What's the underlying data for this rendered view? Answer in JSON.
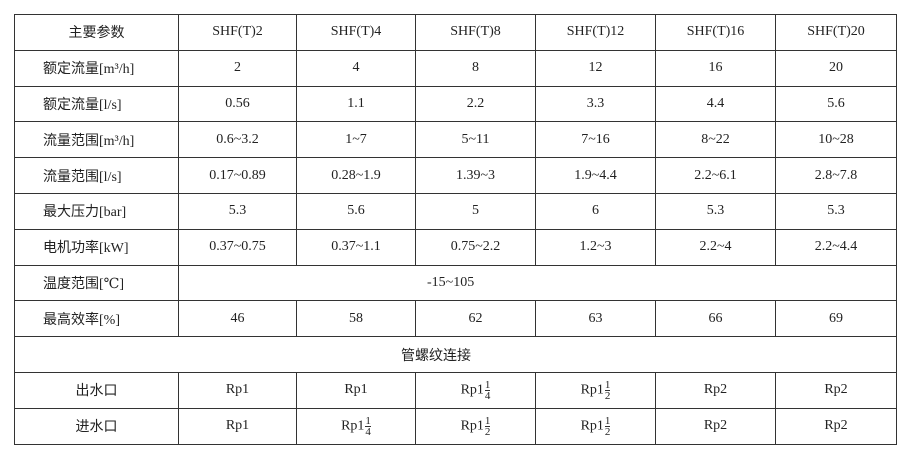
{
  "header": [
    "主要参数",
    "SHF(T)2",
    "SHF(T)4",
    "SHF(T)8",
    "SHF(T)12",
    "SHF(T)16",
    "SHF(T)20"
  ],
  "rows": [
    {
      "label": "额定流量[m³/h]",
      "values": [
        "2",
        "4",
        "8",
        "12",
        "16",
        "20"
      ]
    },
    {
      "label": "额定流量[l/s]",
      "values": [
        "0.56",
        "1.1",
        "2.2",
        "3.3",
        "4.4",
        "5.6"
      ]
    },
    {
      "label": "流量范围[m³/h]",
      "values": [
        "0.6~3.2",
        "1~7",
        "5~11",
        "7~16",
        "8~22",
        "10~28"
      ]
    },
    {
      "label": "流量范围[l/s]",
      "values": [
        "0.17~0.89",
        "0.28~1.9",
        "1.39~3",
        "1.9~4.4",
        "2.2~6.1",
        "2.8~7.8"
      ]
    },
    {
      "label": "最大压力[bar]",
      "values": [
        "5.3",
        "5.6",
        "5",
        "6",
        "5.3",
        "5.3"
      ]
    },
    {
      "label": "电机功率[kW]",
      "values": [
        "0.37~0.75",
        "0.37~1.1",
        "0.75~2.2",
        "1.2~3",
        "2.2~4",
        "2.2~4.4"
      ]
    }
  ],
  "temperature": {
    "label": "温度范围[℃]",
    "value": "-15~105"
  },
  "efficiency": {
    "label": "最高效率[%]",
    "values": [
      "46",
      "58",
      "62",
      "63",
      "66",
      "69"
    ]
  },
  "section_title": "管螺纹连接",
  "connections": [
    {
      "label": "出水口",
      "values": [
        {
          "text": "Rp1"
        },
        {
          "text": "Rp1"
        },
        {
          "text": "Rp1",
          "num": "1",
          "den": "4"
        },
        {
          "text": "Rp1",
          "num": "1",
          "den": "2"
        },
        {
          "text": "Rp2"
        },
        {
          "text": "Rp2"
        }
      ]
    },
    {
      "label": "进水口",
      "values": [
        {
          "text": "Rp1"
        },
        {
          "text": "Rp1",
          "num": "1",
          "den": "4"
        },
        {
          "text": "Rp1",
          "num": "1",
          "den": "2"
        },
        {
          "text": "Rp1",
          "num": "1",
          "den": "2"
        },
        {
          "text": "Rp2"
        },
        {
          "text": "Rp2"
        }
      ]
    }
  ]
}
